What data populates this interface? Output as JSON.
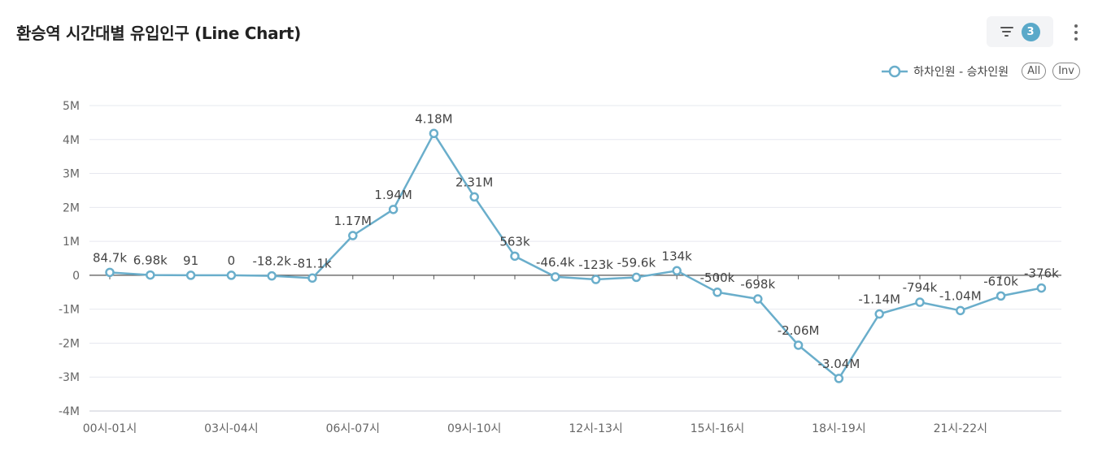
{
  "header": {
    "title": "환승역 시간대별 유입인구 (Line Chart)",
    "filter_count": "3"
  },
  "legend": {
    "series_label": "하차인원 - 승차인원",
    "all_label": "All",
    "inv_label": "Inv"
  },
  "colors": {
    "series": "#6aaecb",
    "grid": "#e6e8ef",
    "axis": "#555555"
  },
  "chart_data": {
    "type": "line",
    "title": "환승역 시간대별 유입인구 (Line Chart)",
    "xlabel": "",
    "ylabel": "",
    "ylim": [
      -4000000,
      5000000
    ],
    "y_ticks": [
      -4000000,
      -3000000,
      -2000000,
      -1000000,
      0,
      1000000,
      2000000,
      3000000,
      4000000,
      5000000
    ],
    "y_tick_labels": [
      "-4M",
      "-3M",
      "-2M",
      "-1M",
      "0",
      "1M",
      "2M",
      "3M",
      "4M",
      "5M"
    ],
    "x_tick_labels": [
      "00시-01시",
      "",
      "",
      "03시-04시",
      "",
      "",
      "06시-07시",
      "",
      "",
      "09시-10시",
      "",
      "",
      "12시-13시",
      "",
      "",
      "15시-16시",
      "",
      "",
      "18시-19시",
      "",
      "",
      "21시-22시",
      "",
      ""
    ],
    "grid": true,
    "legend_position": "top-right",
    "series": [
      {
        "name": "하차인원 - 승차인원",
        "values": [
          84700,
          6980,
          91,
          0,
          -18200,
          -81100,
          1170000,
          1940000,
          4180000,
          2310000,
          563000,
          -46400,
          -123000,
          -59600,
          134000,
          -500000,
          -698000,
          -2060000,
          -3040000,
          -1140000,
          -794000,
          -1040000,
          -610000,
          -376000
        ],
        "labels": [
          "84.7k",
          "6.98k",
          "91",
          "0",
          "-18.2k",
          "-81.1k",
          "1.17M",
          "1.94M",
          "4.18M",
          "2.31M",
          "563k",
          "-46.4k",
          "-123k",
          "-59.6k",
          "134k",
          "-500k",
          "-698k",
          "-2.06M",
          "-3.04M",
          "-1.14M",
          "-794k",
          "-1.04M",
          "-610k",
          "-376k"
        ]
      }
    ]
  }
}
